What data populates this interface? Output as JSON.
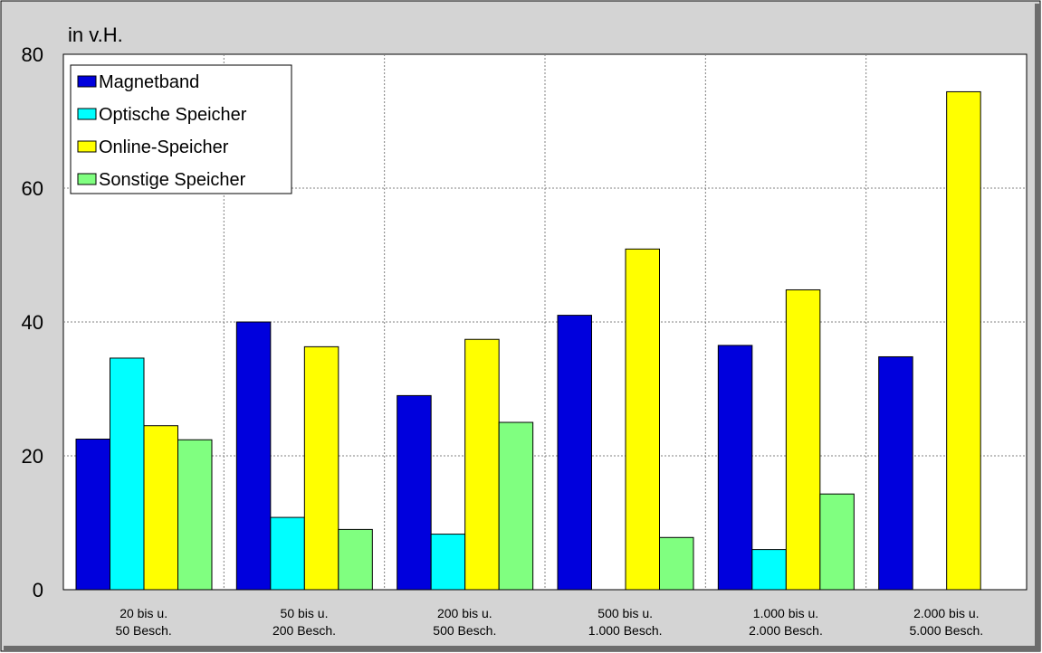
{
  "chart_data": {
    "type": "bar",
    "ylabel": "in v.H.",
    "xlabel": "",
    "ylim": [
      0,
      80
    ],
    "yticks": [
      0,
      20,
      40,
      60,
      80
    ],
    "grid": true,
    "legend_position": "top-left",
    "categories": [
      [
        "20 bis u.",
        "50 Besch."
      ],
      [
        "50 bis u.",
        "200 Besch."
      ],
      [
        "200 bis u.",
        "500 Besch."
      ],
      [
        "500 bis u.",
        "1.000 Besch."
      ],
      [
        "1.000 bis u.",
        "2.000 Besch."
      ],
      [
        "2.000 bis u.",
        "5.000 Besch."
      ]
    ],
    "series": [
      {
        "name": "Magnetband",
        "color": "#0000dd",
        "values": [
          22.5,
          40,
          29,
          41,
          36.5,
          34.8
        ]
      },
      {
        "name": "Optische Speicher",
        "color": "#00ffff",
        "values": [
          34.6,
          10.8,
          8.3,
          0,
          6,
          0
        ]
      },
      {
        "name": "Online-Speicher",
        "color": "#ffff00",
        "values": [
          24.5,
          36.3,
          37.4,
          50.9,
          44.8,
          74.4
        ]
      },
      {
        "name": "Sonstige Speicher",
        "color": "#80ff80",
        "values": [
          22.4,
          9,
          25,
          7.8,
          14.3,
          0
        ]
      }
    ],
    "frame_color": "#d4d4d4"
  }
}
